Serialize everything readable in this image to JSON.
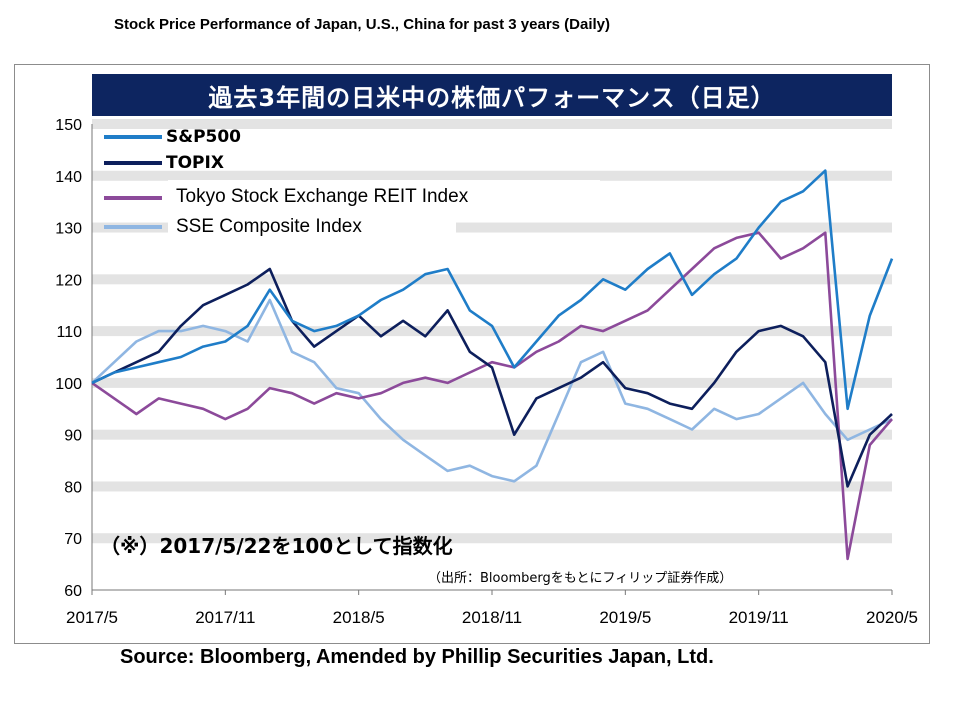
{
  "page": {
    "title": "Stock Price Performance of Japan, U.S., China for past 3 years (Daily)",
    "source": "Source: Bloomberg, Amended by Phillip Securities Japan, Ltd."
  },
  "chart_data": {
    "type": "line",
    "title": "過去3年間の日米中の株価パフォーマンス（日足）",
    "annotation": "（※）2017/5/22を100として指数化",
    "credit": "（出所：Bloombergをもとにフィリップ証券作成）",
    "x_ticks": [
      "2017/5",
      "2017/11",
      "2018/5",
      "2018/11",
      "2019/5",
      "2019/11",
      "2020/5"
    ],
    "y_ticks": [
      150,
      140,
      130,
      120,
      110,
      100,
      90,
      80,
      70,
      60
    ],
    "ylim": [
      60,
      150
    ],
    "xlim": [
      "2017/5",
      "2020/5"
    ],
    "grid": true,
    "legend_position": "top-left",
    "series": [
      {
        "name": "S&P500",
        "color": "#1f7dc8",
        "points": [
          [
            "2017/5",
            100
          ],
          [
            "2017/6",
            102
          ],
          [
            "2017/7",
            103
          ],
          [
            "2017/8",
            104
          ],
          [
            "2017/9",
            105
          ],
          [
            "2017/10",
            107
          ],
          [
            "2017/11",
            108
          ],
          [
            "2017/12",
            111
          ],
          [
            "2018/1",
            118
          ],
          [
            "2018/2",
            112
          ],
          [
            "2018/3",
            110
          ],
          [
            "2018/4",
            111
          ],
          [
            "2018/5",
            113
          ],
          [
            "2018/6",
            116
          ],
          [
            "2018/7",
            118
          ],
          [
            "2018/8",
            121
          ],
          [
            "2018/9",
            122
          ],
          [
            "2018/10",
            114
          ],
          [
            "2018/11",
            111
          ],
          [
            "2018/12",
            103
          ],
          [
            "2019/1",
            108
          ],
          [
            "2019/2",
            113
          ],
          [
            "2019/3",
            116
          ],
          [
            "2019/4",
            120
          ],
          [
            "2019/5",
            118
          ],
          [
            "2019/6",
            122
          ],
          [
            "2019/7",
            125
          ],
          [
            "2019/8",
            117
          ],
          [
            "2019/9",
            121
          ],
          [
            "2019/10",
            124
          ],
          [
            "2019/11",
            130
          ],
          [
            "2019/12",
            135
          ],
          [
            "2020/1",
            137
          ],
          [
            "2020/2",
            141
          ],
          [
            "2020/3",
            95
          ],
          [
            "2020/4",
            113
          ],
          [
            "2020/5",
            124
          ]
        ]
      },
      {
        "name": "TOPIX",
        "color": "#0d1f5c",
        "points": [
          [
            "2017/5",
            100
          ],
          [
            "2017/6",
            102
          ],
          [
            "2017/7",
            104
          ],
          [
            "2017/8",
            106
          ],
          [
            "2017/9",
            111
          ],
          [
            "2017/10",
            115
          ],
          [
            "2017/11",
            117
          ],
          [
            "2017/12",
            119
          ],
          [
            "2018/1",
            122
          ],
          [
            "2018/2",
            112
          ],
          [
            "2018/3",
            107
          ],
          [
            "2018/4",
            110
          ],
          [
            "2018/5",
            113
          ],
          [
            "2018/6",
            109
          ],
          [
            "2018/7",
            112
          ],
          [
            "2018/8",
            109
          ],
          [
            "2018/9",
            114
          ],
          [
            "2018/10",
            106
          ],
          [
            "2018/11",
            103
          ],
          [
            "2018/12",
            90
          ],
          [
            "2019/1",
            97
          ],
          [
            "2019/2",
            99
          ],
          [
            "2019/3",
            101
          ],
          [
            "2019/4",
            104
          ],
          [
            "2019/5",
            99
          ],
          [
            "2019/6",
            98
          ],
          [
            "2019/7",
            96
          ],
          [
            "2019/8",
            95
          ],
          [
            "2019/9",
            100
          ],
          [
            "2019/10",
            106
          ],
          [
            "2019/11",
            110
          ],
          [
            "2019/12",
            111
          ],
          [
            "2020/1",
            109
          ],
          [
            "2020/2",
            104
          ],
          [
            "2020/3",
            80
          ],
          [
            "2020/4",
            90
          ],
          [
            "2020/5",
            94
          ]
        ]
      },
      {
        "name": "Tokyo Stock Exchange REIT Index",
        "color": "#8c4a9a",
        "points": [
          [
            "2017/5",
            100
          ],
          [
            "2017/6",
            97
          ],
          [
            "2017/7",
            94
          ],
          [
            "2017/8",
            97
          ],
          [
            "2017/9",
            96
          ],
          [
            "2017/10",
            95
          ],
          [
            "2017/11",
            93
          ],
          [
            "2017/12",
            95
          ],
          [
            "2018/1",
            99
          ],
          [
            "2018/2",
            98
          ],
          [
            "2018/3",
            96
          ],
          [
            "2018/4",
            98
          ],
          [
            "2018/5",
            97
          ],
          [
            "2018/6",
            98
          ],
          [
            "2018/7",
            100
          ],
          [
            "2018/8",
            101
          ],
          [
            "2018/9",
            100
          ],
          [
            "2018/10",
            102
          ],
          [
            "2018/11",
            104
          ],
          [
            "2018/12",
            103
          ],
          [
            "2019/1",
            106
          ],
          [
            "2019/2",
            108
          ],
          [
            "2019/3",
            111
          ],
          [
            "2019/4",
            110
          ],
          [
            "2019/5",
            112
          ],
          [
            "2019/6",
            114
          ],
          [
            "2019/7",
            118
          ],
          [
            "2019/8",
            122
          ],
          [
            "2019/9",
            126
          ],
          [
            "2019/10",
            128
          ],
          [
            "2019/11",
            129
          ],
          [
            "2019/12",
            124
          ],
          [
            "2020/1",
            126
          ],
          [
            "2020/2",
            129
          ],
          [
            "2020/3",
            66
          ],
          [
            "2020/4",
            88
          ],
          [
            "2020/5",
            93
          ]
        ]
      },
      {
        "name": "SSE Composite Index",
        "color": "#8fb6e2",
        "points": [
          [
            "2017/5",
            100
          ],
          [
            "2017/6",
            104
          ],
          [
            "2017/7",
            108
          ],
          [
            "2017/8",
            110
          ],
          [
            "2017/9",
            110
          ],
          [
            "2017/10",
            111
          ],
          [
            "2017/11",
            110
          ],
          [
            "2017/12",
            108
          ],
          [
            "2018/1",
            116
          ],
          [
            "2018/2",
            106
          ],
          [
            "2018/3",
            104
          ],
          [
            "2018/4",
            99
          ],
          [
            "2018/5",
            98
          ],
          [
            "2018/6",
            93
          ],
          [
            "2018/7",
            89
          ],
          [
            "2018/8",
            86
          ],
          [
            "2018/9",
            83
          ],
          [
            "2018/10",
            84
          ],
          [
            "2018/11",
            82
          ],
          [
            "2018/12",
            81
          ],
          [
            "2019/1",
            84
          ],
          [
            "2019/2",
            94
          ],
          [
            "2019/3",
            104
          ],
          [
            "2019/4",
            106
          ],
          [
            "2019/5",
            96
          ],
          [
            "2019/6",
            95
          ],
          [
            "2019/7",
            93
          ],
          [
            "2019/8",
            91
          ],
          [
            "2019/9",
            95
          ],
          [
            "2019/10",
            93
          ],
          [
            "2019/11",
            94
          ],
          [
            "2019/12",
            97
          ],
          [
            "2020/1",
            100
          ],
          [
            "2020/2",
            94
          ],
          [
            "2020/3",
            89
          ],
          [
            "2020/4",
            91
          ],
          [
            "2020/5",
            93
          ]
        ]
      }
    ]
  }
}
